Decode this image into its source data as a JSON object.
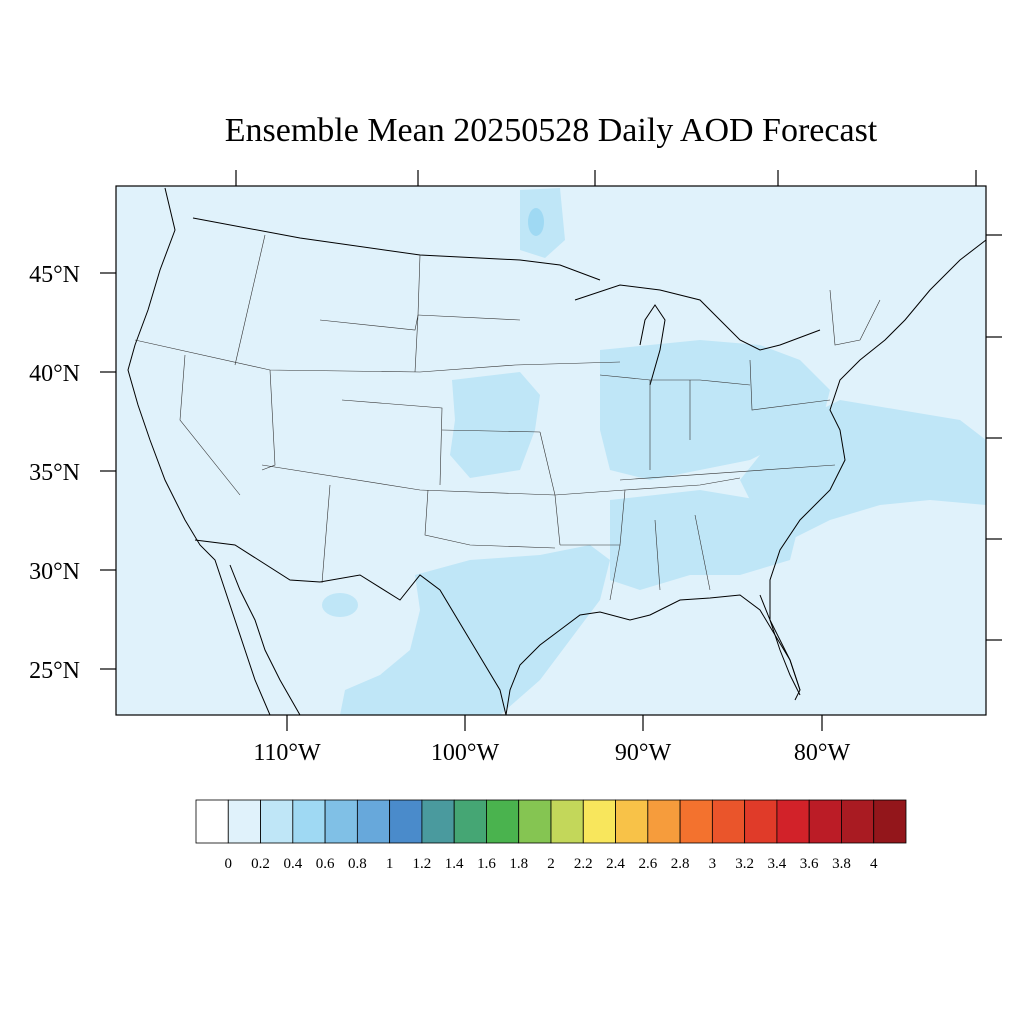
{
  "title": "Ensemble Mean 20250528 Daily AOD Forecast",
  "map": {
    "projection": "lambert-conformal",
    "region": "CONUS"
  },
  "latitude_labels": [
    "45°N",
    "40°N",
    "35°N",
    "30°N",
    "25°N"
  ],
  "longitude_labels": [
    "110°W",
    "100°W",
    "90°W",
    "80°W"
  ],
  "colorbar": {
    "labels": [
      "0",
      "0.2",
      "0.4",
      "0.6",
      "0.8",
      "1",
      "1.2",
      "1.4",
      "1.6",
      "1.8",
      "2",
      "2.2",
      "2.4",
      "2.6",
      "2.8",
      "3",
      "3.2",
      "3.4",
      "3.6",
      "3.8",
      "4"
    ],
    "colors": [
      "#ffffff",
      "#e0f2fb",
      "#bfe6f7",
      "#9fd9f3",
      "#80c0e6",
      "#67a8db",
      "#4a8bcb",
      "#4a9a9e",
      "#45a674",
      "#4ab34e",
      "#85c552",
      "#c3d75a",
      "#f8e65c",
      "#f8c248",
      "#f69c3c",
      "#f3722e",
      "#ea552b",
      "#e03b29",
      "#d22229",
      "#bb1c26",
      "#a91b22",
      "#93161b"
    ]
  },
  "field": {
    "background_level_color": "#e0f2fb",
    "elevated_level_color": "#bfe6f7",
    "peak_level_color": "#9fd9f3",
    "peak_location": "northern Minnesota"
  }
}
